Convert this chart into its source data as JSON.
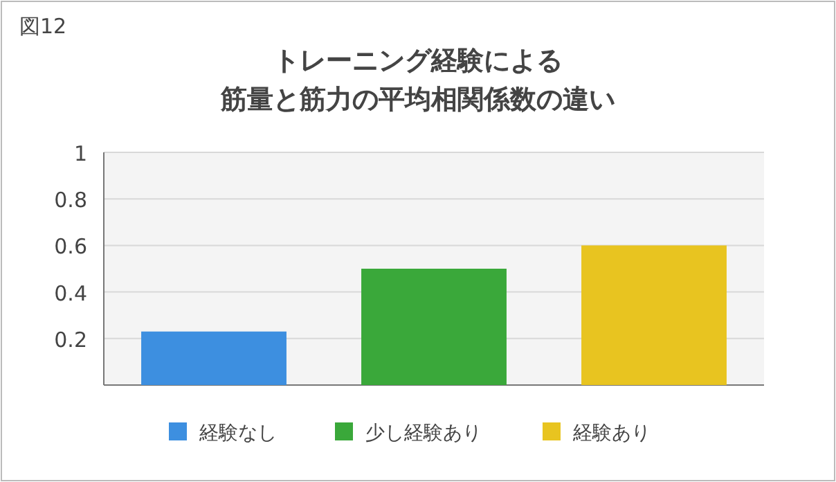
{
  "chart_data": {
    "type": "bar",
    "title": "トレーニング経験による",
    "subtitle": "筋量と筋力の平均相関係数の違い",
    "annotations": [
      "図12"
    ],
    "categories": [
      null
    ],
    "series": [
      {
        "name": "経験なし",
        "color": "#3d8fe0",
        "values": [
          0.23
        ]
      },
      {
        "name": "少し経験あり",
        "color": "#3aa83a",
        "values": [
          0.5
        ]
      },
      {
        "name": "経験あり",
        "color": "#e8c420",
        "values": [
          0.6
        ]
      }
    ],
    "ylim": [
      0,
      1
    ],
    "yticks": [
      0.2,
      0.4,
      0.6,
      0.8,
      1
    ],
    "grid": "y",
    "legend": "bottom"
  }
}
